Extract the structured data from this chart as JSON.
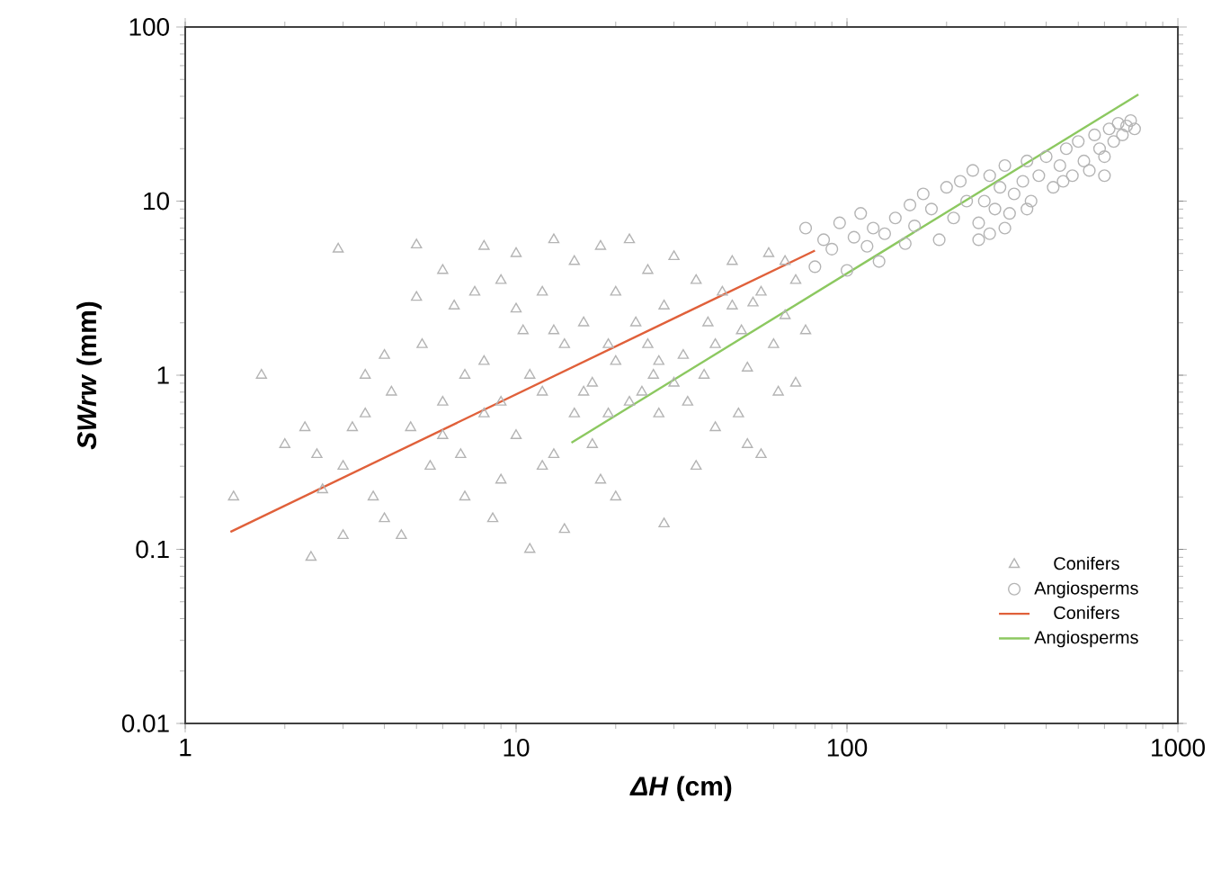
{
  "chart_data": {
    "type": "scatter",
    "xlabel": "*ΔH* (cm)",
    "ylabel": "*SWrw* (mm)",
    "log": "xy",
    "grid": false,
    "legend": "bottom right",
    "xlim": [
      1,
      1000
    ],
    "ylim": [
      0.01,
      100
    ],
    "xticks": [
      1,
      10,
      100,
      1000
    ],
    "yticks": [
      0.01,
      0.1,
      1,
      10,
      100
    ],
    "series": [
      {
        "name": "Conifers",
        "marker": "triangle",
        "color": "#b4b4b4",
        "x": [
          1.4,
          1.7,
          2.0,
          2.3,
          2.4,
          2.5,
          2.6,
          2.9,
          3.0,
          3.2,
          3.5,
          3.7,
          4.0,
          4.2,
          4.5,
          5.0,
          5.2,
          5.5,
          6,
          6.5,
          7,
          8,
          7.5,
          8,
          9,
          9,
          10,
          10,
          10.5,
          11,
          12,
          12,
          13,
          13,
          14,
          15,
          15,
          16,
          17,
          18,
          18,
          20,
          20,
          22,
          22,
          25,
          25,
          27,
          28,
          30,
          32,
          35,
          35,
          40,
          40,
          45,
          45,
          50,
          50,
          55,
          55,
          60,
          65,
          70,
          75,
          14,
          6,
          8,
          11,
          9,
          12,
          17,
          19,
          24,
          26,
          30,
          38,
          42,
          48,
          52,
          58,
          20,
          7,
          6,
          5,
          4,
          3.5,
          3,
          4.8,
          6.8,
          10,
          13,
          16,
          19,
          23,
          27,
          33,
          37,
          47,
          62,
          70,
          65,
          8.5,
          28
        ],
        "values": [
          0.2,
          1.0,
          0.4,
          0.5,
          0.09,
          0.35,
          0.22,
          5.3,
          0.12,
          0.5,
          0.6,
          0.2,
          0.15,
          0.8,
          0.12,
          5.6,
          1.5,
          0.3,
          4.0,
          2.5,
          0.2,
          5.5,
          3,
          1.2,
          0.7,
          0.25,
          5,
          0.45,
          1.8,
          0.1,
          3,
          0.8,
          6,
          0.35,
          1.5,
          4.5,
          0.6,
          2.0,
          0.9,
          5.5,
          0.25,
          3,
          1.2,
          6,
          0.7,
          1.5,
          4,
          0.6,
          2.5,
          0.9,
          1.3,
          0.3,
          3.5,
          1.5,
          0.5,
          4.5,
          2.5,
          1.1,
          0.4,
          3,
          0.35,
          1.5,
          2.2,
          0.9,
          1.8,
          0.13,
          0.45,
          0.6,
          1,
          3.5,
          0.3,
          0.4,
          0.6,
          0.8,
          1.0,
          4.8,
          2.0,
          3.0,
          1.8,
          2.6,
          5,
          0.2,
          1,
          0.7,
          2.8,
          1.3,
          1.0,
          0.3,
          0.5,
          0.35,
          2.4,
          1.8,
          0.8,
          1.5,
          2.0,
          1.2,
          0.7,
          1.0,
          0.6,
          0.8,
          3.5,
          4.5,
          0.15,
          0.14
        ]
      },
      {
        "name": "Angiosperms",
        "marker": "circle",
        "color": "#b4b4b4",
        "x": [
          75,
          80,
          85,
          90,
          95,
          100,
          105,
          110,
          115,
          120,
          125,
          130,
          140,
          150,
          155,
          160,
          170,
          180,
          190,
          200,
          210,
          220,
          230,
          240,
          250,
          260,
          270,
          280,
          290,
          300,
          310,
          320,
          340,
          350,
          360,
          380,
          400,
          420,
          440,
          460,
          480,
          500,
          520,
          540,
          560,
          580,
          600,
          620,
          640,
          660,
          680,
          700,
          720,
          740,
          600,
          250,
          300,
          270,
          350,
          450
        ],
        "values": [
          7,
          4.2,
          6,
          5.3,
          7.5,
          4,
          6.2,
          8.5,
          5.5,
          7,
          4.5,
          6.5,
          8,
          5.7,
          9.5,
          7.2,
          11,
          9,
          6,
          12,
          8,
          13,
          10,
          15,
          7.5,
          10,
          14,
          9,
          12,
          16,
          8.5,
          11,
          13,
          17,
          10,
          14,
          18,
          12,
          16,
          20,
          14,
          22,
          17,
          15,
          24,
          20,
          18,
          26,
          22,
          28,
          24,
          27,
          29,
          26,
          14,
          6,
          7,
          6.5,
          9,
          13
        ]
      },
      {
        "name": "Conifers",
        "type": "line",
        "marker": "none",
        "color": "#e0603a",
        "x": [
          1.37,
          80
        ],
        "values": [
          0.126,
          5.2
        ]
      },
      {
        "name": "Angiosperms",
        "type": "line",
        "marker": "none",
        "color": "#8cc860",
        "x": [
          14.7,
          760
        ],
        "values": [
          0.41,
          41
        ]
      }
    ]
  }
}
